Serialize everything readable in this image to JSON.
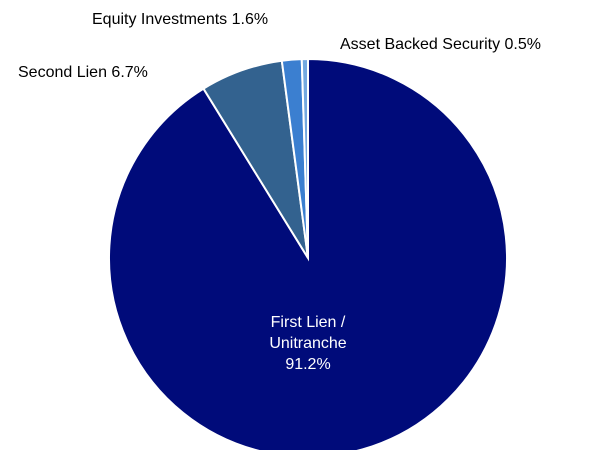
{
  "chart_data": {
    "type": "pie",
    "categories": [
      "First Lien / Unitranche",
      "Second Lien",
      "Equity Investments",
      "Asset Backed Security"
    ],
    "values": [
      91.2,
      6.7,
      1.6,
      0.5
    ],
    "value_labels": [
      "91.2%",
      "6.7%",
      "1.6%",
      "0.5%"
    ],
    "colors": [
      "#000b7a",
      "#33628f",
      "#3b7fd0",
      "#74a9e0"
    ]
  }
}
